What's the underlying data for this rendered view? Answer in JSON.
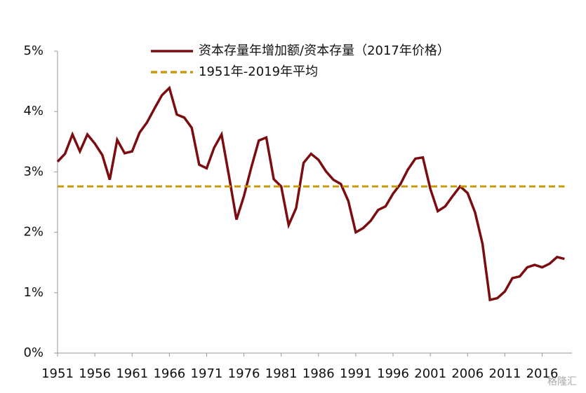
{
  "chart_data": {
    "type": "line",
    "x": [
      1951,
      1952,
      1953,
      1954,
      1955,
      1956,
      1957,
      1958,
      1959,
      1960,
      1961,
      1962,
      1963,
      1964,
      1965,
      1966,
      1967,
      1968,
      1969,
      1970,
      1971,
      1972,
      1973,
      1974,
      1975,
      1976,
      1977,
      1978,
      1979,
      1980,
      1981,
      1982,
      1983,
      1984,
      1985,
      1986,
      1987,
      1988,
      1989,
      1990,
      1991,
      1992,
      1993,
      1994,
      1995,
      1996,
      1997,
      1998,
      1999,
      2000,
      2001,
      2002,
      2003,
      2004,
      2005,
      2006,
      2007,
      2008,
      2009,
      2010,
      2011,
      2012,
      2013,
      2014,
      2015,
      2016,
      2017,
      2018,
      2019
    ],
    "series": [
      {
        "name": "资本存量年增加额/资本存量（2017年价格）",
        "color": "#7b0c10",
        "dash": false,
        "values": [
          3.17,
          3.3,
          3.62,
          3.34,
          3.62,
          3.47,
          3.28,
          2.87,
          3.53,
          3.31,
          3.34,
          3.65,
          3.82,
          4.05,
          4.27,
          4.39,
          3.95,
          3.9,
          3.73,
          3.12,
          3.06,
          3.4,
          3.62,
          2.93,
          2.21,
          2.6,
          3.08,
          3.52,
          3.57,
          2.88,
          2.76,
          2.12,
          2.4,
          3.15,
          3.3,
          3.2,
          3.01,
          2.87,
          2.8,
          2.52,
          2.0,
          2.07,
          2.19,
          2.37,
          2.43,
          2.64,
          2.8,
          3.04,
          3.22,
          3.24,
          2.72,
          2.35,
          2.43,
          2.6,
          2.76,
          2.65,
          2.33,
          1.81,
          0.88,
          0.91,
          1.02,
          1.24,
          1.27,
          1.42,
          1.46,
          1.42,
          1.48,
          1.59,
          1.56
        ]
      },
      {
        "name": "1951年-2019年平均",
        "color": "#c99a06",
        "dash": true,
        "values": [
          2.76,
          2.76,
          2.76,
          2.76,
          2.76,
          2.76,
          2.76,
          2.76,
          2.76,
          2.76,
          2.76,
          2.76,
          2.76,
          2.76,
          2.76,
          2.76,
          2.76,
          2.76,
          2.76,
          2.76,
          2.76,
          2.76,
          2.76,
          2.76,
          2.76,
          2.76,
          2.76,
          2.76,
          2.76,
          2.76,
          2.76,
          2.76,
          2.76,
          2.76,
          2.76,
          2.76,
          2.76,
          2.76,
          2.76,
          2.76,
          2.76,
          2.76,
          2.76,
          2.76,
          2.76,
          2.76,
          2.76,
          2.76,
          2.76,
          2.76,
          2.76,
          2.76,
          2.76,
          2.76,
          2.76,
          2.76,
          2.76,
          2.76,
          2.76,
          2.76,
          2.76,
          2.76,
          2.76,
          2.76,
          2.76,
          2.76,
          2.76,
          2.76,
          2.76
        ]
      }
    ],
    "xlim": [
      1951,
      2020
    ],
    "xticks": [
      1951,
      1956,
      1961,
      1966,
      1971,
      1976,
      1981,
      1986,
      1991,
      1996,
      2001,
      2006,
      2011,
      2016
    ],
    "ylim": [
      0,
      5
    ],
    "yticks": [
      {
        "value": 0,
        "label": "0%"
      },
      {
        "value": 1,
        "label": "1%"
      },
      {
        "value": 2,
        "label": "2%"
      },
      {
        "value": 3,
        "label": "3%"
      },
      {
        "value": 4,
        "label": "4%"
      },
      {
        "value": 5,
        "label": "5%"
      }
    ],
    "grid": false,
    "watermark": "格隆汇"
  }
}
